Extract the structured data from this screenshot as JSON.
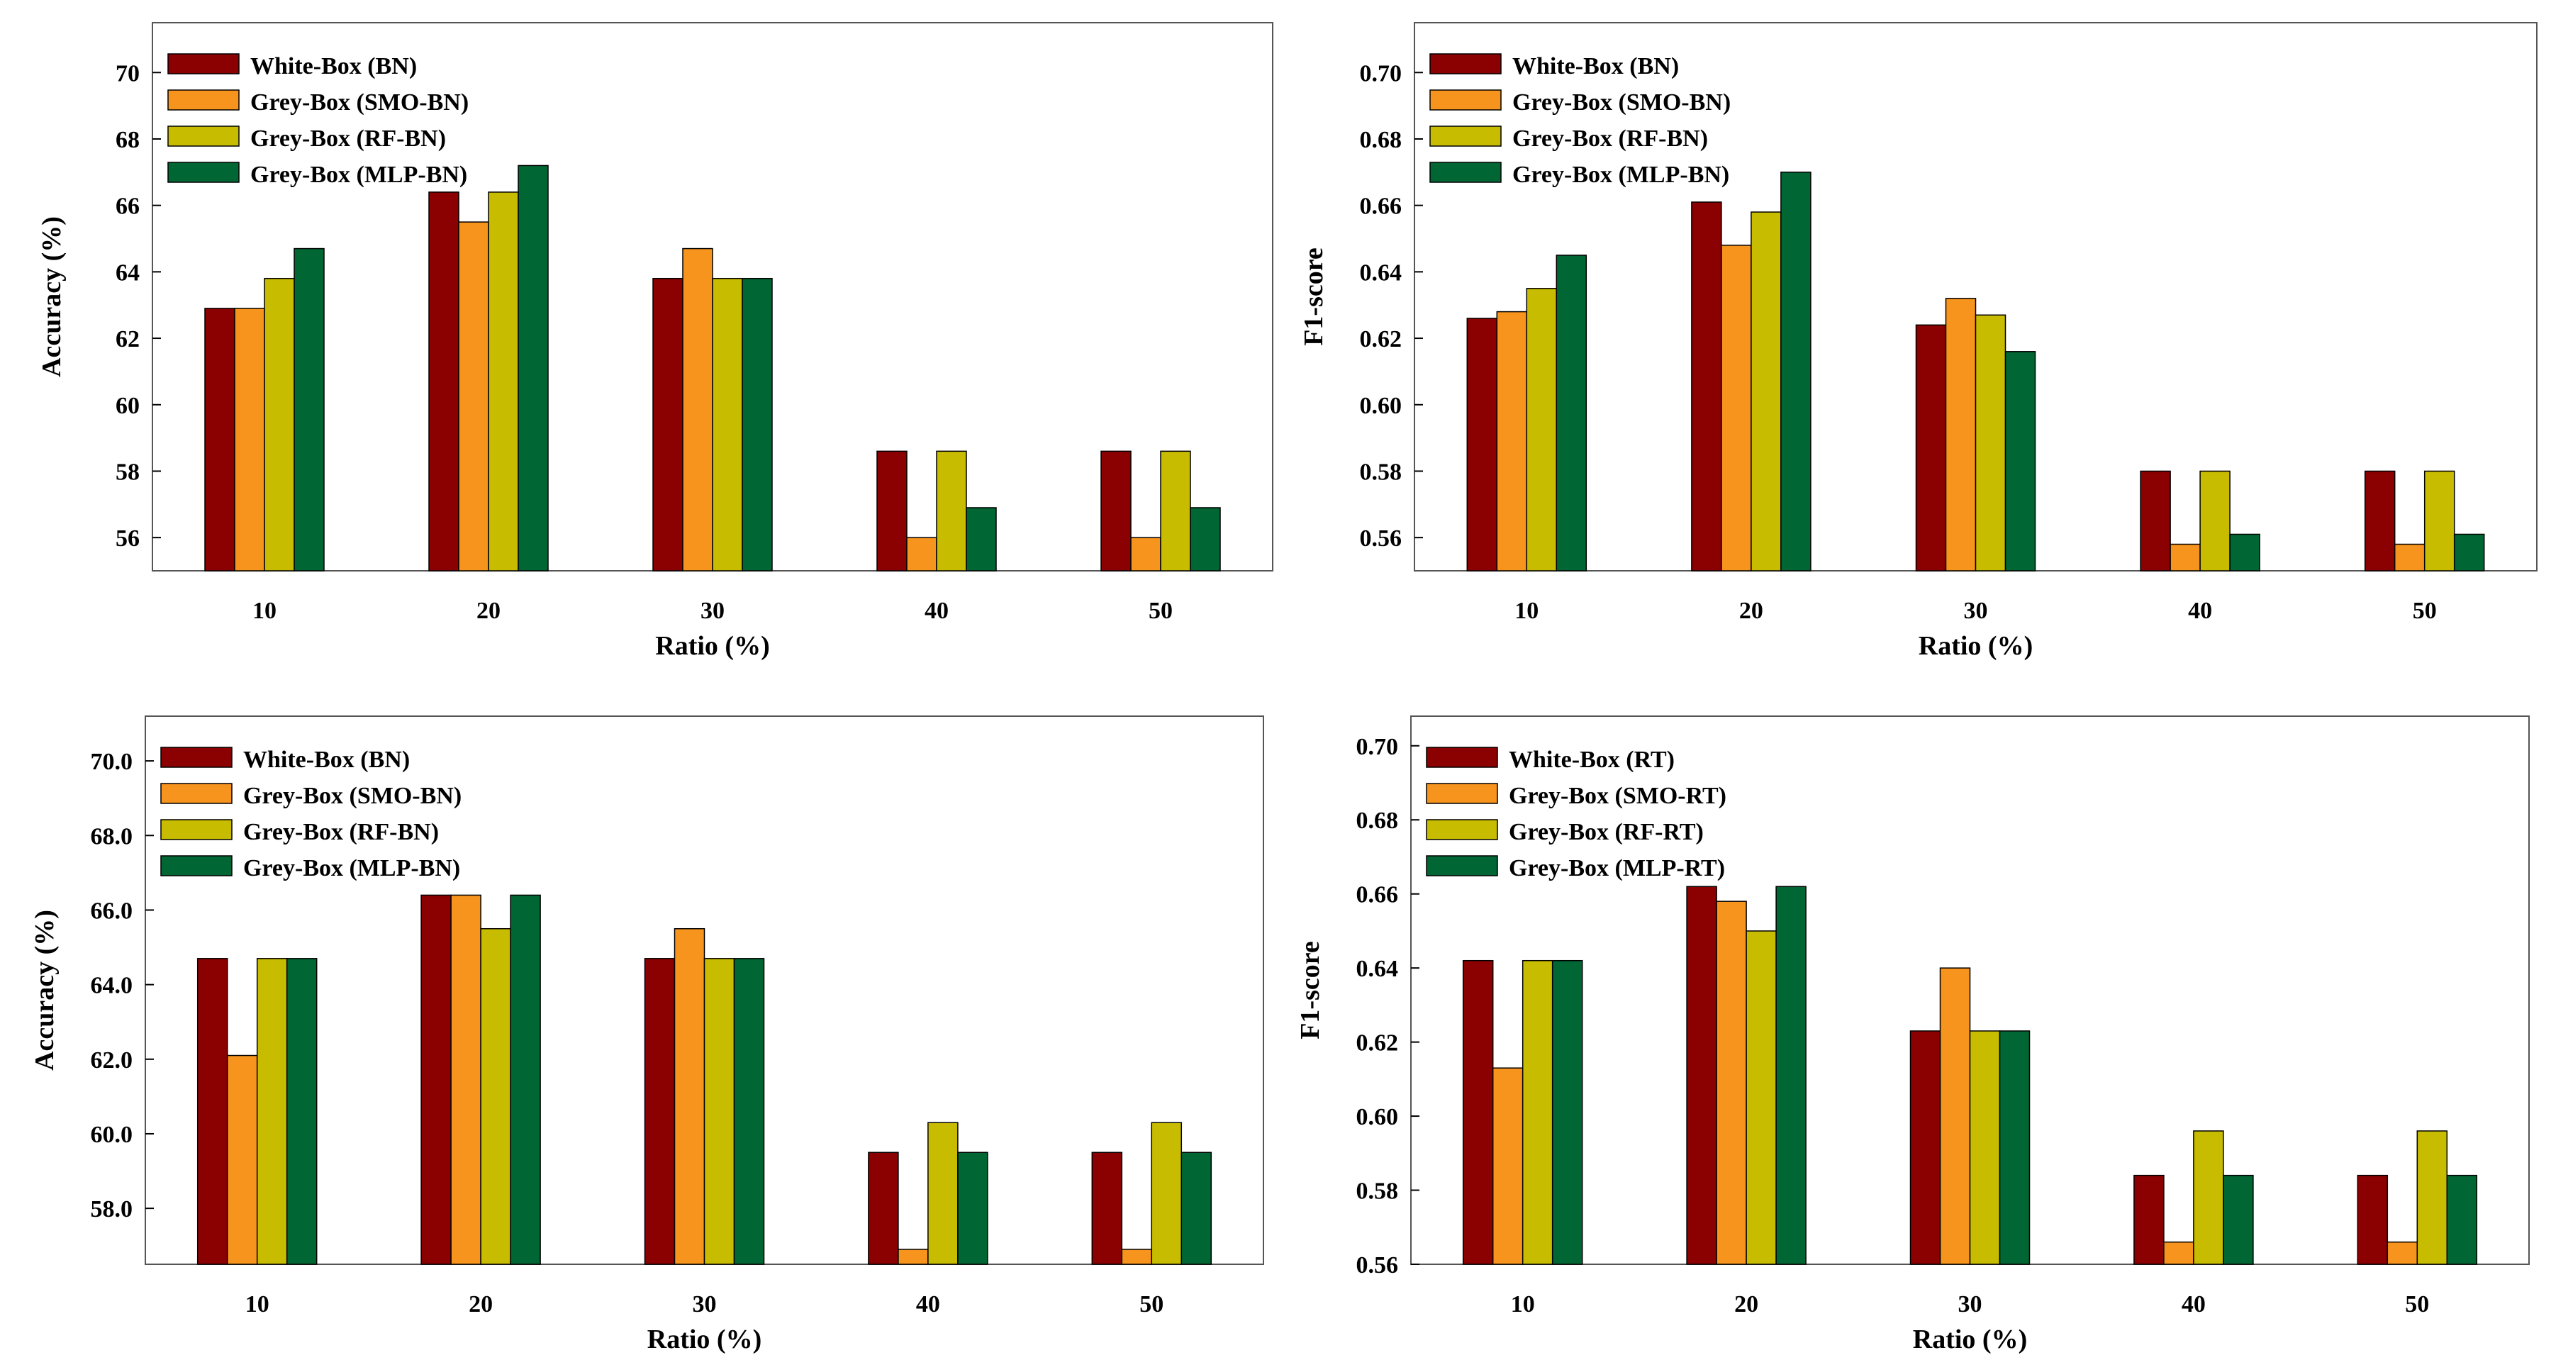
{
  "chart_data": [
    {
      "type": "bar",
      "ylabel": "Accuracy (%)",
      "xlabel": "Ratio (%)",
      "categories": [
        "10",
        "20",
        "30",
        "40",
        "50"
      ],
      "yticks": [
        56,
        58,
        60,
        62,
        64,
        66,
        68,
        70
      ],
      "ytick_labels": [
        "56",
        "58",
        "60",
        "62",
        "64",
        "66",
        "68",
        "70"
      ],
      "ylim": [
        55,
        71.5
      ],
      "series": [
        {
          "name": "White-Box (BN)",
          "color": "#8b0000",
          "values": [
            62.9,
            66.4,
            63.8,
            58.6,
            58.6
          ]
        },
        {
          "name": "Grey-Box (SMO-BN)",
          "color": "#f7941d",
          "values": [
            62.9,
            65.5,
            64.7,
            56.0,
            56.0
          ]
        },
        {
          "name": "Grey-Box (RF-BN)",
          "color": "#c8bc00",
          "values": [
            63.8,
            66.4,
            63.8,
            58.6,
            58.6
          ]
        },
        {
          "name": "Grey-Box (MLP-BN)",
          "color": "#006633",
          "values": [
            64.7,
            67.2,
            63.8,
            56.9,
            56.9
          ]
        }
      ]
    },
    {
      "type": "bar",
      "ylabel": "F1-score",
      "xlabel": "Ratio (%)",
      "categories": [
        "10",
        "20",
        "30",
        "40",
        "50"
      ],
      "yticks": [
        0.56,
        0.58,
        0.6,
        0.62,
        0.64,
        0.66,
        0.68,
        0.7
      ],
      "ytick_labels": [
        "0.56",
        "0.58",
        "0.60",
        "0.62",
        "0.64",
        "0.66",
        "0.68",
        "0.70"
      ],
      "ylim": [
        0.55,
        0.715
      ],
      "series": [
        {
          "name": "White-Box (BN)",
          "color": "#8b0000",
          "values": [
            0.626,
            0.661,
            0.624,
            0.58,
            0.58
          ]
        },
        {
          "name": "Grey-Box (SMO-BN)",
          "color": "#f7941d",
          "values": [
            0.628,
            0.648,
            0.632,
            0.558,
            0.558
          ]
        },
        {
          "name": "Grey-Box (RF-BN)",
          "color": "#c8bc00",
          "values": [
            0.635,
            0.658,
            0.627,
            0.58,
            0.58
          ]
        },
        {
          "name": "Grey-Box (MLP-BN)",
          "color": "#006633",
          "values": [
            0.645,
            0.67,
            0.616,
            0.561,
            0.561
          ]
        }
      ]
    },
    {
      "type": "bar",
      "ylabel": "Accuracy (%)",
      "xlabel": "Ratio (%)",
      "categories": [
        "10",
        "20",
        "30",
        "40",
        "50"
      ],
      "yticks": [
        58,
        60,
        62,
        64,
        66,
        68,
        70
      ],
      "ytick_labels": [
        "58.0",
        "60.0",
        "62.0",
        "64.0",
        "66.0",
        "68.0",
        "70.0"
      ],
      "ylim": [
        56.5,
        71.2
      ],
      "series": [
        {
          "name": "White-Box (BN)",
          "color": "#8b0000",
          "values": [
            64.7,
            66.4,
            64.7,
            59.5,
            59.5
          ]
        },
        {
          "name": "Grey-Box (SMO-BN)",
          "color": "#f7941d",
          "values": [
            62.1,
            66.4,
            65.5,
            56.9,
            56.9
          ]
        },
        {
          "name": "Grey-Box (RF-BN)",
          "color": "#c8bc00",
          "values": [
            64.7,
            65.5,
            64.7,
            60.3,
            60.3
          ]
        },
        {
          "name": "Grey-Box (MLP-BN)",
          "color": "#006633",
          "values": [
            64.7,
            66.4,
            64.7,
            59.5,
            59.5
          ]
        }
      ]
    },
    {
      "type": "bar",
      "ylabel": "F1-score",
      "xlabel": "Ratio (%)",
      "categories": [
        "10",
        "20",
        "30",
        "40",
        "50"
      ],
      "yticks": [
        0.56,
        0.58,
        0.6,
        0.62,
        0.64,
        0.66,
        0.68,
        0.7
      ],
      "ytick_labels": [
        "0.56",
        "0.58",
        "0.60",
        "0.62",
        "0.64",
        "0.66",
        "0.68",
        "0.70"
      ],
      "ylim": [
        0.56,
        0.708
      ],
      "series": [
        {
          "name": "White-Box (RT)",
          "color": "#8b0000",
          "values": [
            0.642,
            0.662,
            0.623,
            0.584,
            0.584
          ]
        },
        {
          "name": "Grey-Box (SMO-RT)",
          "color": "#f7941d",
          "values": [
            0.613,
            0.658,
            0.64,
            0.566,
            0.566
          ]
        },
        {
          "name": "Grey-Box (RF-RT)",
          "color": "#c8bc00",
          "values": [
            0.642,
            0.65,
            0.623,
            0.596,
            0.596
          ]
        },
        {
          "name": "Grey-Box (MLP-RT)",
          "color": "#006633",
          "values": [
            0.642,
            0.662,
            0.623,
            0.584,
            0.584
          ]
        }
      ]
    }
  ]
}
